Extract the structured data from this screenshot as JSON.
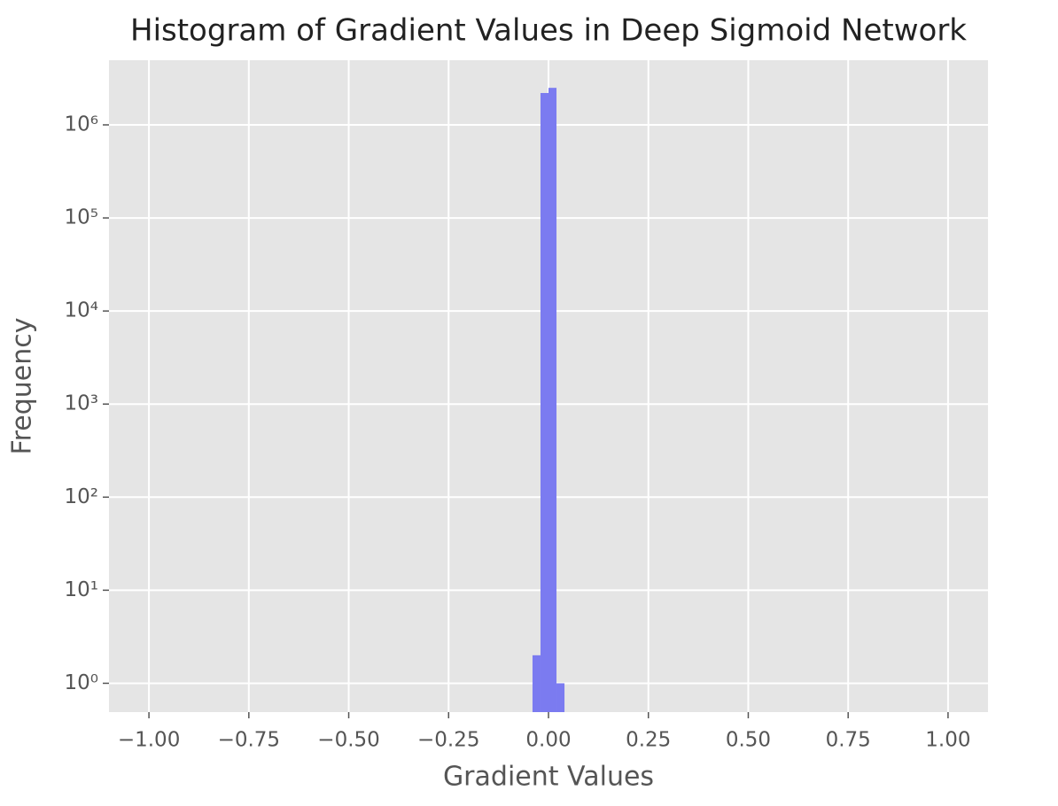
{
  "chart_data": {
    "type": "histogram",
    "title": "Histogram of Gradient Values in Deep Sigmoid Network",
    "xlabel": "Gradient Values",
    "ylabel": "Frequency",
    "bins": [
      -1.0,
      -0.98,
      -0.96,
      -0.94,
      -0.92,
      -0.9,
      -0.88,
      -0.86,
      -0.84,
      -0.82,
      -0.8,
      -0.78,
      -0.76,
      -0.74,
      -0.72,
      -0.7,
      -0.68,
      -0.66,
      -0.64,
      -0.62,
      -0.6,
      -0.58,
      -0.56,
      -0.54,
      -0.52,
      -0.5,
      -0.48,
      -0.46,
      -0.44,
      -0.42,
      -0.4,
      -0.38,
      -0.36,
      -0.34,
      -0.32,
      -0.3,
      -0.28,
      -0.26,
      -0.24,
      -0.22,
      -0.2,
      -0.18,
      -0.16,
      -0.14,
      -0.12,
      -0.1,
      -0.08,
      -0.06,
      -0.04,
      -0.02,
      0,
      0.02,
      0.04,
      0.06,
      0.08,
      0.1,
      0.12,
      0.14,
      0.16,
      0.18,
      0.2,
      0.22,
      0.24,
      0.26,
      0.28,
      0.3,
      0.32,
      0.34,
      0.36,
      0.38,
      0.4,
      0.42,
      0.44,
      0.46,
      0.48,
      0.5,
      0.52,
      0.54,
      0.56,
      0.58,
      0.6,
      0.62,
      0.64,
      0.66,
      0.68,
      0.7,
      0.72,
      0.74,
      0.76,
      0.78,
      0.8,
      0.82,
      0.84,
      0.86,
      0.88,
      0.9,
      0.92,
      0.94,
      0.96,
      0.98,
      1.0
    ],
    "values": [
      0,
      0,
      0,
      0,
      0,
      0,
      0,
      0,
      0,
      0,
      0,
      0,
      0,
      0,
      0,
      0,
      0,
      0,
      0,
      0,
      0,
      0,
      0,
      0,
      0,
      0,
      0,
      0,
      0,
      0,
      0,
      0,
      0,
      0,
      0,
      0,
      0,
      0,
      0,
      0,
      0,
      0,
      0,
      0,
      0,
      0,
      0,
      0,
      2,
      2200000,
      2500000,
      1,
      0,
      0,
      0,
      0,
      0,
      0,
      0,
      0,
      0,
      0,
      0,
      0,
      0,
      0,
      0,
      0,
      0,
      0,
      0,
      0,
      0,
      0,
      0,
      0,
      0,
      0,
      0,
      0,
      0,
      0,
      0,
      0,
      0,
      0,
      0,
      0,
      0,
      0,
      0,
      0,
      0,
      0,
      0,
      0,
      0,
      0,
      0,
      0
    ],
    "color": "#7b7bf0",
    "xlim": [
      -1.1,
      1.1
    ],
    "ylim": [
      0.49,
      4950000
    ],
    "yscale": "log",
    "grid": true,
    "xticks": [
      {
        "value": -1,
        "label": "−1.00"
      },
      {
        "value": -0.75,
        "label": "−0.75"
      },
      {
        "value": -0.5,
        "label": "−0.50"
      },
      {
        "value": -0.25,
        "label": "−0.25"
      },
      {
        "value": 0,
        "label": "0.00"
      },
      {
        "value": 0.25,
        "label": "0.25"
      },
      {
        "value": 0.5,
        "label": "0.50"
      },
      {
        "value": 0.75,
        "label": "0.75"
      },
      {
        "value": 1,
        "label": "1.00"
      }
    ],
    "yticks": [
      {
        "value": 1,
        "label": "10⁰"
      },
      {
        "value": 10,
        "label": "10¹"
      },
      {
        "value": 100,
        "label": "10²"
      },
      {
        "value": 1000,
        "label": "10³"
      },
      {
        "value": 10000,
        "label": "10⁴"
      },
      {
        "value": 100000,
        "label": "10⁵"
      },
      {
        "value": 1000000,
        "label": "10⁶"
      }
    ]
  }
}
